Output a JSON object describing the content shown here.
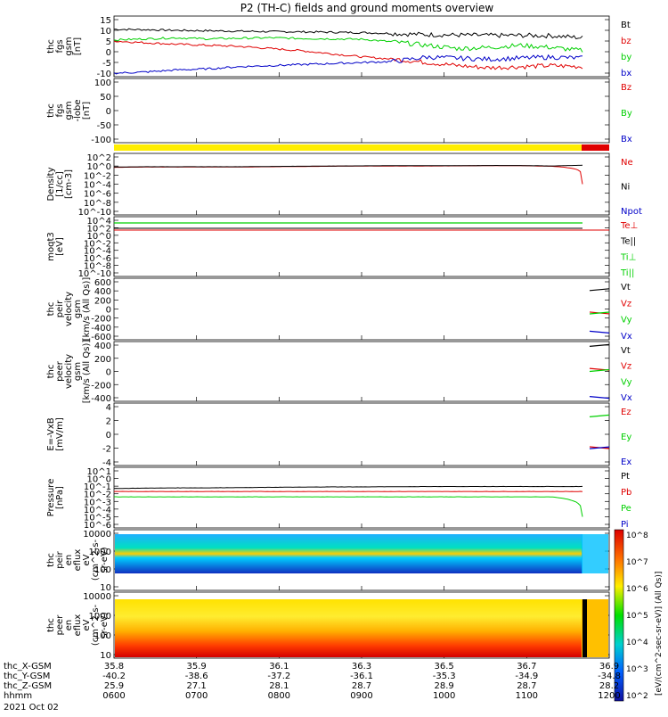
{
  "title": "P2 (TH-C) fields and ground moments overview",
  "date_label": "2021 Oct 02",
  "colors": {
    "black": "#000000",
    "red": "#e00000",
    "green": "#00d000",
    "blue": "#0000c8",
    "yellow": "#ffee00"
  },
  "axis": {
    "row_labels": [
      "thc_X-GSM",
      "thc_Y-GSM",
      "thc_Z-GSM",
      "hhmm"
    ],
    "columns": [
      [
        "35.8",
        "-40.2",
        "25.9",
        "0600"
      ],
      [
        "35.9",
        "-38.6",
        "27.1",
        "0700"
      ],
      [
        "36.1",
        "-37.2",
        "28.1",
        "0800"
      ],
      [
        "36.3",
        "-36.1",
        "28.7",
        "0900"
      ],
      [
        "36.5",
        "-35.3",
        "28.9",
        "1000"
      ],
      [
        "36.7",
        "-34.9",
        "28.7",
        "1100"
      ],
      [
        "36.9",
        "-34.8",
        "28.2",
        "1200"
      ]
    ]
  },
  "colorbar": {
    "tick_labels": [
      "10^8",
      "10^7",
      "10^6",
      "10^5",
      "10^4",
      "10^3",
      "10^2"
    ],
    "unit_label": "[eV/(cm^2-sec-sr-eV)] (All Qs)]"
  },
  "panels": [
    {
      "id": "fgs",
      "ylabel": [
        "thc",
        "fgs",
        "gsm",
        "[nT]"
      ],
      "ticks": [
        "15",
        "10",
        "5",
        "0",
        "-5",
        "-10"
      ],
      "legend": [
        {
          "text": "Bt",
          "color": "#000000"
        },
        {
          "text": "bz",
          "color": "#e00000"
        },
        {
          "text": "by",
          "color": "#00d000"
        },
        {
          "text": "bx",
          "color": "#0000c8"
        }
      ]
    },
    {
      "id": "fgs_low",
      "ylabel": [
        "thc",
        "fgs",
        "gsm",
        "-lobe",
        "[nT]"
      ],
      "ticks": [
        "100",
        "50",
        "0",
        "-50",
        "-100"
      ],
      "legend": [
        {
          "text": "Bz",
          "color": "#e00000"
        },
        {
          "text": "By",
          "color": "#00d000"
        },
        {
          "text": "Bx",
          "color": "#0000c8"
        }
      ]
    },
    {
      "id": "density",
      "ylabel": [
        "Density",
        "[1/cc]",
        "[cm-3]"
      ],
      "ticks": [
        "10^2",
        "10^0",
        "10^-2",
        "10^-4",
        "10^-6",
        "10^-8",
        "10^-10"
      ],
      "legend": [
        {
          "text": "Ne",
          "color": "#e00000"
        },
        {
          "text": "Ni",
          "color": "#000000"
        },
        {
          "text": "Npot",
          "color": "#0000c8"
        }
      ]
    },
    {
      "id": "temp",
      "ylabel": [
        "moqt3",
        "[eV]"
      ],
      "ticks": [
        "10^4",
        "10^2",
        "10^0",
        "10^-2",
        "10^-4",
        "10^-6",
        "10^-8",
        "10^-10"
      ],
      "legend": [
        {
          "text": "Te⊥",
          "color": "#e00000"
        },
        {
          "text": "Te||",
          "color": "#000000"
        },
        {
          "text": "Ti⊥",
          "color": "#00d000"
        },
        {
          "text": "Ti||",
          "color": "#00d000"
        }
      ]
    },
    {
      "id": "peir_v",
      "ylabel": [
        "thc",
        "peir",
        "velocity",
        "gsm",
        "[km/s (All Qs)]"
      ],
      "ticks": [
        "600",
        "400",
        "200",
        "0",
        "-200",
        "-400",
        "-600"
      ],
      "legend": [
        {
          "text": "Vt",
          "color": "#000000"
        },
        {
          "text": "Vz",
          "color": "#e00000"
        },
        {
          "text": "Vy",
          "color": "#00d000"
        },
        {
          "text": "Vx",
          "color": "#0000c8"
        }
      ]
    },
    {
      "id": "peer_v",
      "ylabel": [
        "thc",
        "peer",
        "velocity",
        "gsm",
        "[km/s (All Qs)]"
      ],
      "ticks": [
        "400",
        "200",
        "0",
        "-200",
        "-400"
      ],
      "legend": [
        {
          "text": "Vt",
          "color": "#000000"
        },
        {
          "text": "Vz",
          "color": "#e00000"
        },
        {
          "text": "Vy",
          "color": "#00d000"
        },
        {
          "text": "Vx",
          "color": "#0000c8"
        }
      ]
    },
    {
      "id": "efield",
      "ylabel": [
        "E=-VxB",
        "[mV/m]"
      ],
      "ticks": [
        "4",
        "2",
        "0",
        "-2",
        "-4"
      ],
      "legend": [
        {
          "text": "Ez",
          "color": "#e00000"
        },
        {
          "text": "Ey",
          "color": "#00d000"
        },
        {
          "text": "Ex",
          "color": "#0000c8"
        }
      ]
    },
    {
      "id": "pressure",
      "ylabel": [
        "Pressure",
        "[nPa]"
      ],
      "ticks": [
        "10^1",
        "10^0",
        "10^-1",
        "10^-2",
        "10^-3",
        "10^-4",
        "10^-5",
        "10^-6"
      ],
      "legend": [
        {
          "text": "Pt",
          "color": "#000000"
        },
        {
          "text": "Pb",
          "color": "#e00000"
        },
        {
          "text": "Pe",
          "color": "#00d000"
        },
        {
          "text": "Pi",
          "color": "#0000c8"
        }
      ]
    },
    {
      "id": "peir_spec",
      "ylabel": [
        "thc",
        "peir",
        "en",
        "eflux",
        "eV",
        "(cm^2-s-",
        "sr-eV)"
      ],
      "ticks": [
        "10000",
        "1000",
        "100",
        "10"
      ],
      "legend": []
    },
    {
      "id": "peer_spec",
      "ylabel": [
        "thc",
        "peer",
        "en",
        "eflux",
        "eV",
        "(cm^2-s-",
        "sr-eV)"
      ],
      "ticks": [
        "10000",
        "1000",
        "100",
        "10"
      ],
      "legend": []
    }
  ],
  "chart_data": {
    "type": "line",
    "x_range": [
      "0600",
      "1200"
    ],
    "series": [
      {
        "name": "Bt",
        "panel": "fgs",
        "values": [
          10.5,
          10.3,
          10.0,
          9.8,
          9.6,
          9.4,
          9.3,
          9.1,
          8.9,
          8.5,
          8.0,
          7.8,
          7.6,
          7.6,
          7.5,
          6.5
        ]
      },
      {
        "name": "bz",
        "panel": "fgs",
        "values": [
          5.0,
          4.2,
          3.5,
          3.0,
          2.5,
          1.5,
          0.5,
          -1.0,
          -2.5,
          -3.5,
          -5.0,
          -6.5,
          -7.5,
          -7.0,
          -6.5,
          -7.0
        ]
      },
      {
        "name": "by",
        "panel": "fgs",
        "values": [
          5.5,
          6.0,
          6.5,
          6.0,
          6.3,
          6.5,
          6.2,
          6.0,
          5.8,
          4.5,
          3.0,
          1.5,
          2.0,
          3.0,
          2.0,
          0.5
        ]
      },
      {
        "name": "bx",
        "panel": "fgs",
        "values": [
          -10.0,
          -9.5,
          -8.5,
          -8.0,
          -7.0,
          -6.5,
          -6.0,
          -5.5,
          -5.0,
          -4.5,
          -2.5,
          -3.0,
          -3.5,
          -3.0,
          -2.5,
          -3.0
        ]
      },
      {
        "name": "Ne",
        "panel": "density",
        "values": [
          0.5,
          0.6,
          0.6,
          0.6,
          0.6,
          0.7,
          0.8,
          0.9,
          1.0,
          1.0,
          1.0,
          1.1,
          1.2,
          1.2,
          0.9,
          0.0001
        ]
      },
      {
        "name": "Ni",
        "panel": "density",
        "values": [
          0.6,
          0.7,
          0.7,
          0.7,
          0.7,
          0.8,
          0.9,
          1.0,
          1.1,
          1.2,
          1.2,
          1.2,
          1.3,
          1.3,
          1.0,
          1.5
        ]
      },
      {
        "name": "Pt",
        "panel": "pressure",
        "values": [
          0.05,
          0.055,
          0.06,
          0.06,
          0.065,
          0.07,
          0.075,
          0.08,
          0.08,
          0.085,
          0.09,
          0.09,
          0.09,
          0.09,
          0.09,
          0.09
        ]
      },
      {
        "name": "Pb",
        "panel": "pressure",
        "values": [
          0.02,
          0.02,
          0.02,
          0.02,
          0.02,
          0.02,
          0.02,
          0.02,
          0.02,
          0.02,
          0.02,
          0.02,
          0.02,
          0.02,
          0.02,
          0.02
        ]
      },
      {
        "name": "Pe",
        "panel": "pressure",
        "values": [
          0.004,
          0.004,
          0.004,
          0.004,
          0.004,
          0.004,
          0.004,
          0.004,
          0.004,
          0.004,
          0.004,
          0.004,
          0.004,
          0.004,
          0.004,
          1e-05
        ]
      }
    ]
  }
}
